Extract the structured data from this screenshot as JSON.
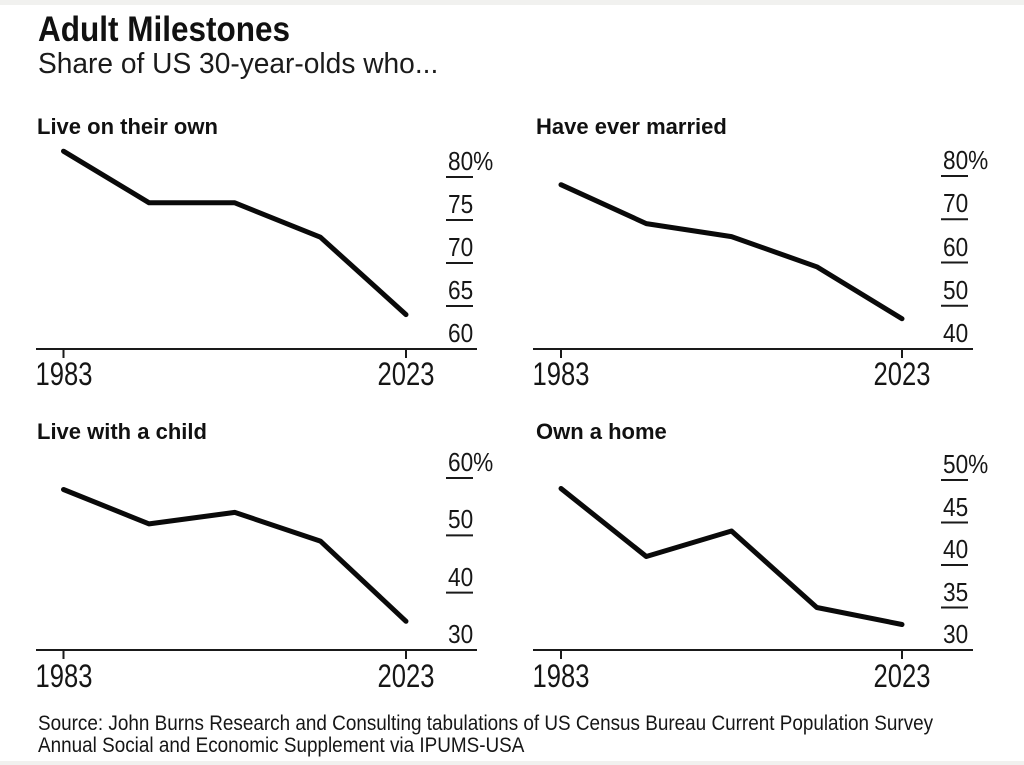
{
  "header": {
    "title": "Adult Milestones",
    "subtitle": "Share of US 30-year-olds who..."
  },
  "chart_data": [
    {
      "type": "line",
      "title": "Live on their own",
      "x": [
        1983,
        1993,
        2003,
        2013,
        2023
      ],
      "values": [
        83,
        77,
        77,
        73,
        64
      ],
      "ytick_values": [
        80,
        75,
        70,
        65,
        60
      ],
      "ytick_labels": [
        "80%",
        "75",
        "70",
        "65",
        "60"
      ],
      "xtick_labels": [
        "1983",
        "2023"
      ],
      "ylim": [
        60,
        80
      ],
      "grid": false,
      "line_color": "#0a0a0a"
    },
    {
      "type": "line",
      "title": "Have ever married",
      "x": [
        1983,
        1993,
        2003,
        2013,
        2023
      ],
      "values": [
        78,
        69,
        66,
        59,
        47
      ],
      "ytick_values": [
        80,
        70,
        60,
        50,
        40
      ],
      "ytick_labels": [
        "80%",
        "70",
        "60",
        "50",
        "40"
      ],
      "xtick_labels": [
        "1983",
        "2023"
      ],
      "ylim": [
        40,
        80
      ],
      "grid": false,
      "line_color": "#0a0a0a"
    },
    {
      "type": "line",
      "title": "Live with a child",
      "x": [
        1983,
        1993,
        2003,
        2013,
        2023
      ],
      "values": [
        58,
        52,
        54,
        49,
        35
      ],
      "ytick_values": [
        60,
        50,
        40,
        30
      ],
      "ytick_labels": [
        "60%",
        "50",
        "40",
        "30"
      ],
      "xtick_labels": [
        "1983",
        "2023"
      ],
      "ylim": [
        30,
        60
      ],
      "grid": false,
      "line_color": "#0a0a0a"
    },
    {
      "type": "line",
      "title": "Own a home",
      "x": [
        1983,
        1993,
        2003,
        2013,
        2023
      ],
      "values": [
        49,
        41,
        44,
        35,
        33
      ],
      "ytick_values": [
        50,
        45,
        40,
        35,
        30
      ],
      "ytick_labels": [
        "50%",
        "45",
        "40",
        "35",
        "30"
      ],
      "xtick_labels": [
        "1983",
        "2023"
      ],
      "ylim": [
        30,
        50
      ],
      "grid": false,
      "line_color": "#0a0a0a"
    }
  ],
  "source": {
    "line1": "Source: John Burns Research and Consulting tabulations of US Census Bureau Current Population Survey",
    "line2": "Annual Social and Economic Supplement via IPUMS-USA"
  },
  "colors": {
    "text": "#151515",
    "axis": "#1a1a1a",
    "line": "#0a0a0a",
    "background": "#ffffff",
    "edge_strip": "#f1f1ef"
  }
}
